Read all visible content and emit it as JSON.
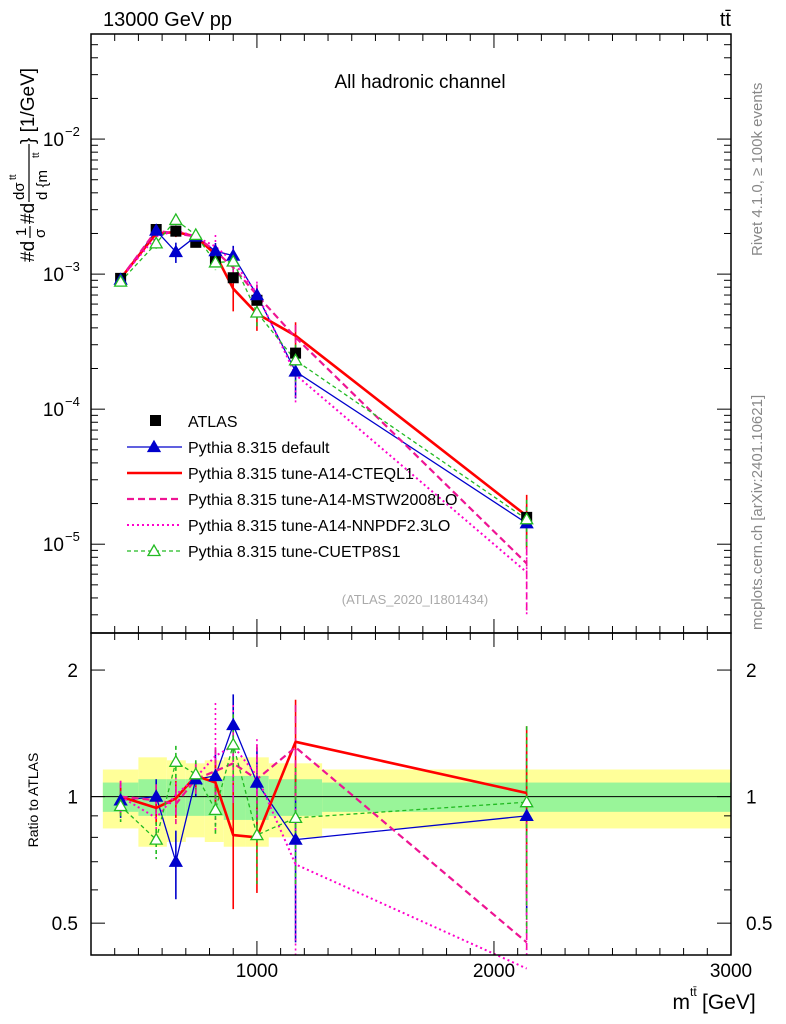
{
  "header": {
    "left": "13000 GeV pp",
    "right": "tt̄"
  },
  "side_labels": {
    "rivet": "Rivet 4.1.0, ≥ 100k events",
    "mcplots": "mcplots.cern.ch [arXiv:2401.10621]"
  },
  "colors": {
    "atlas": "#000000",
    "default": "#0000cc",
    "cteql1": "#ff0000",
    "mstw": "#ee1493",
    "nnpdf": "#ff00cc",
    "cuetp8s1": "#22bb22",
    "band_inner": "#99f599",
    "band_outer": "#ffff99"
  },
  "chart_data": [
    {
      "panel": "main",
      "type": "line",
      "title": "All hadronic channel",
      "watermark": "(ATLAS_2020_I1801434)",
      "ylabel": "#d1/σ#ddσ^{tt}/d{m^{tt}} [1/GeV]",
      "ylabel_parts": {
        "num_prefix": "#d",
        "frac1_num": "1",
        "frac1_den": "σ",
        "mid": "#d",
        "frac2_num": "dσ",
        "frac2_num_sup": "tt",
        "frac2_den": "d {m",
        "frac2_den_sup": "tt",
        "tail": "} [1/GeV]"
      },
      "yscale": "log",
      "ylim": [
        2.2e-06,
        0.06
      ],
      "xlim": [
        300,
        3000
      ],
      "y_ticks": [
        {
          "value": 1e-05,
          "base": "10",
          "exp": "−5"
        },
        {
          "value": 0.0001,
          "base": "10",
          "exp": "−4"
        },
        {
          "value": 0.001,
          "base": "10",
          "exp": "−3"
        },
        {
          "value": 0.01,
          "base": "10",
          "exp": "−2"
        }
      ],
      "x": [
        425,
        575,
        658,
        742,
        825,
        900,
        1000,
        1163,
        2138
      ],
      "series": [
        {
          "name": "ATLAS",
          "style": "data",
          "color": "#000000",
          "values": [
            0.00093,
            0.00214,
            0.00208,
            0.00172,
            0.00128,
            0.00094,
            0.00064,
            0.00026,
            1.58e-05
          ],
          "err": [
            5e-05,
            8e-05,
            8e-05,
            7e-05,
            6e-05,
            5e-05,
            4e-05,
            2e-05,
            1.5e-06
          ]
        },
        {
          "name": "Pythia 8.315 default",
          "style": "solid",
          "marker": "triangle-filled",
          "color": "#0000cc",
          "width": 1.3,
          "values": [
            0.00091,
            0.0021,
            0.00146,
            0.0019,
            0.00148,
            0.00137,
            0.0007,
            0.00019,
            1.43e-05
          ],
          "err": [
            7e-05,
            0.00018,
            0.00025,
            0.00015,
            0.00022,
            0.00025,
            0.00013,
            7e-05,
            5e-06
          ]
        },
        {
          "name": "Pythia 8.315 tune-A14-CTEQL1",
          "style": "solid",
          "marker": "none",
          "color": "#ff0000",
          "width": 2.6,
          "values": [
            0.00093,
            0.002,
            0.00205,
            0.0019,
            0.0014,
            0.00078,
            0.00051,
            0.00035,
            1.62e-05
          ],
          "err": [
            7e-05,
            0.00015,
            0.00017,
            0.00013,
            0.00015,
            0.00025,
            0.00013,
            9e-05,
            7e-06
          ]
        },
        {
          "name": "Pythia 8.315 tune-A14-MSTW2008LO",
          "style": "dashed",
          "marker": "none",
          "color": "#ee1493",
          "width": 2.2,
          "values": [
            0.00093,
            0.0021,
            0.002,
            0.0019,
            0.00148,
            0.00112,
            0.0007,
            0.00034,
            7.2e-06
          ],
          "err": [
            7e-05,
            0.00016,
            0.00018,
            0.00014,
            0.00018,
            0.00022,
            0.00014,
            8e-05,
            4e-06
          ]
        },
        {
          "name": "Pythia 8.315 tune-A14-NNPDF2.3LO",
          "style": "dotted",
          "marker": "none",
          "color": "#ff00cc",
          "width": 2.0,
          "values": [
            0.00093,
            0.0019,
            0.0021,
            0.0019,
            0.0016,
            0.00124,
            0.00072,
            0.00018,
            6.2e-06
          ],
          "err": [
            7e-05,
            0.00015,
            0.00018,
            0.00015,
            0.00035,
            0.0003,
            0.00016,
            7e-05,
            3.3e-06
          ]
        },
        {
          "name": "Pythia 8.315 tune-CUETP8S1",
          "style": "dashed-fine",
          "marker": "triangle-open",
          "color": "#22bb22",
          "width": 1.3,
          "values": [
            0.00088,
            0.00169,
            0.00252,
            0.00195,
            0.00122,
            0.00124,
            0.00052,
            0.00023,
            1.53e-05
          ],
          "err": [
            7e-05,
            0.00015,
            0.00022,
            0.00015,
            0.00015,
            0.00022,
            0.00011,
            7e-05,
            6e-06
          ]
        }
      ]
    },
    {
      "panel": "ratio",
      "type": "line",
      "ylabel": "Ratio to ATLAS",
      "xlabel": "m^{tt̄} [GeV]",
      "xlabel_parts": {
        "base": "m",
        "sup": "tt̄",
        "unit": " [GeV]"
      },
      "yscale": "log",
      "ylim": [
        0.42,
        2.45
      ],
      "xlim": [
        300,
        3000
      ],
      "y_ticks": [
        {
          "value": 0.5,
          "label": "0.5"
        },
        {
          "value": 1,
          "label": "1"
        },
        {
          "value": 2,
          "label": "2"
        }
      ],
      "x_ticks": [
        {
          "value": 1000,
          "label": "1000"
        },
        {
          "value": 2000,
          "label": "2000"
        },
        {
          "value": 3000,
          "label": "3000"
        }
      ],
      "bin_edges": [
        350,
        500,
        620,
        700,
        780,
        860,
        950,
        1050,
        1275,
        3000
      ],
      "band_outer": [
        0.16,
        0.24,
        0.22,
        0.2,
        0.22,
        0.24,
        0.24,
        0.2,
        0.16
      ],
      "band_inner": [
        0.08,
        0.1,
        0.1,
        0.1,
        0.1,
        0.12,
        0.12,
        0.1,
        0.08
      ],
      "x": [
        425,
        575,
        658,
        742,
        825,
        900,
        1000,
        1163,
        2138
      ],
      "series": [
        {
          "name": "Pythia 8.315 default",
          "style": "solid",
          "marker": "triangle-filled",
          "color": "#0000cc",
          "width": 1.3,
          "values": [
            0.98,
            1.0,
            0.7,
            1.1,
            1.12,
            1.48,
            1.08,
            0.79,
            0.9
          ],
          "err": [
            0.09,
            0.1,
            0.13,
            0.1,
            0.17,
            0.27,
            0.23,
            0.34,
            0.38
          ]
        },
        {
          "name": "Pythia 8.315 tune-A14-CTEQL1",
          "style": "solid",
          "marker": "none",
          "color": "#ff0000",
          "width": 2.6,
          "values": [
            1.0,
            0.94,
            0.99,
            1.12,
            1.08,
            0.81,
            0.8,
            1.35,
            1.02
          ],
          "err": [
            0.09,
            0.08,
            0.1,
            0.09,
            0.14,
            0.27,
            0.21,
            0.35,
            0.45
          ]
        },
        {
          "name": "Pythia 8.315 tune-A14-MSTW2008LO",
          "style": "dashed",
          "marker": "none",
          "color": "#ee1493",
          "width": 2.2,
          "values": [
            1.0,
            0.98,
            0.96,
            1.1,
            1.15,
            1.2,
            1.1,
            1.31,
            0.45
          ],
          "err": [
            0.09,
            0.09,
            0.1,
            0.09,
            0.16,
            0.24,
            0.23,
            0.34,
            0.42
          ]
        },
        {
          "name": "Pythia 8.315 tune-A14-NNPDF2.3LO",
          "style": "dotted",
          "marker": "none",
          "color": "#ff00cc",
          "width": 2.0,
          "values": [
            1.0,
            0.89,
            1.01,
            1.11,
            1.25,
            1.32,
            1.12,
            0.69,
            0.39
          ],
          "err": [
            0.09,
            0.08,
            0.1,
            0.09,
            0.42,
            0.33,
            0.25,
            0.3,
            0.25
          ]
        },
        {
          "name": "Pythia 8.315 tune-CUETP8S1",
          "style": "dashed-fine",
          "marker": "triangle-open",
          "color": "#22bb22",
          "width": 1.3,
          "values": [
            0.95,
            0.79,
            1.21,
            1.13,
            0.93,
            1.33,
            0.81,
            0.89,
            0.97
          ],
          "err": [
            0.08,
            0.08,
            0.11,
            0.09,
            0.12,
            0.24,
            0.19,
            0.28,
            0.5
          ]
        }
      ]
    }
  ]
}
